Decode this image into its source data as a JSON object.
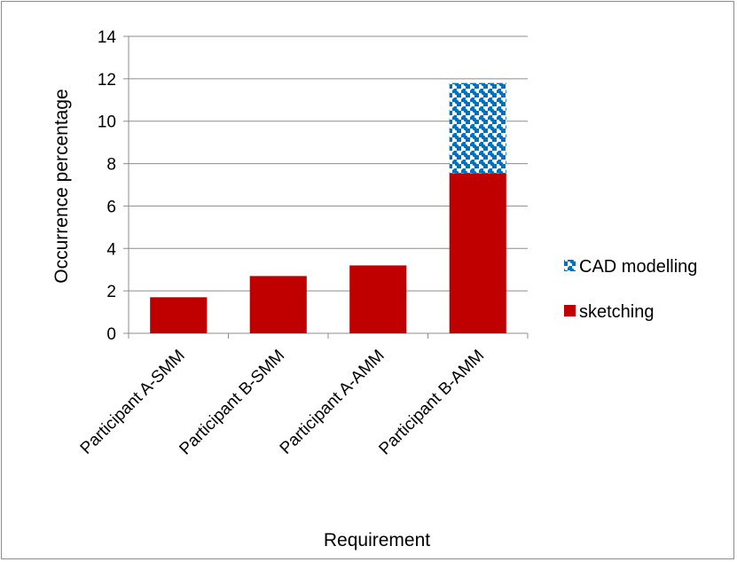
{
  "chart_data": {
    "type": "bar",
    "stacked": true,
    "categories": [
      "Participant A-SMM",
      "Participant B-SMM",
      "Participant A-AMM",
      "Participant B-AMM"
    ],
    "series": [
      {
        "name": "sketching",
        "values": [
          1.7,
          2.7,
          3.2,
          7.55
        ],
        "color": "#c00000",
        "pattern": "solid"
      },
      {
        "name": "CAD modelling",
        "values": [
          0,
          0,
          0,
          4.25
        ],
        "color": "#0070c0",
        "pattern": "checker"
      }
    ],
    "xlabel": "Requirement",
    "ylabel": "Occurrence percentage",
    "ylim": [
      0,
      14
    ],
    "yticks": [
      0,
      2,
      4,
      6,
      8,
      10,
      12,
      14
    ],
    "grid": true,
    "legend_position": "right",
    "legend_order": [
      "CAD modelling",
      "sketching"
    ],
    "gridline_color": "#8c8c8c"
  }
}
